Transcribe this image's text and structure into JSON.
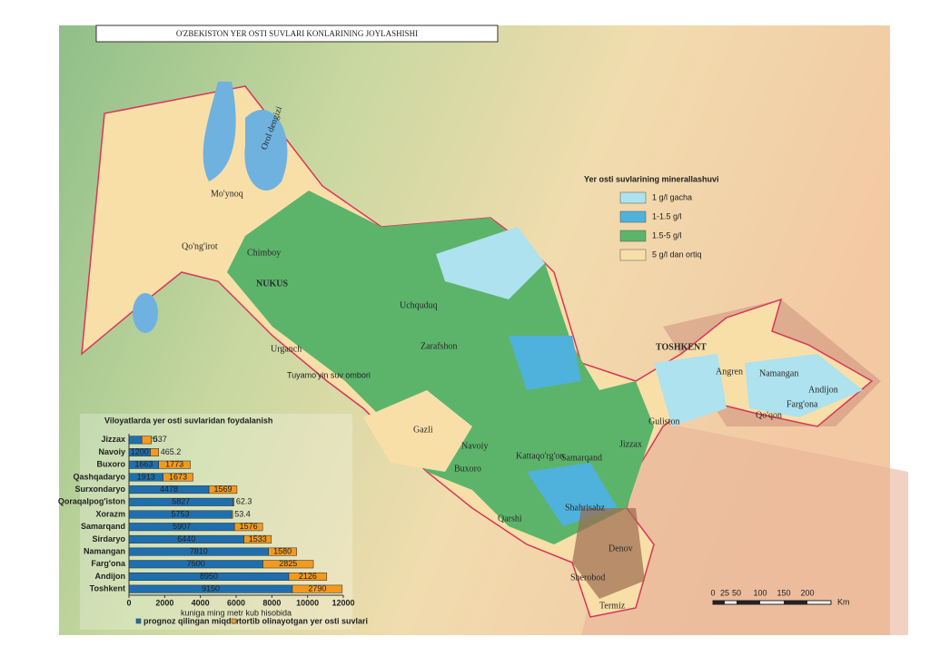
{
  "header": {
    "title": "O'ZBEKISTON YER OSTI SUVLARI KONLARINING JOYLASHISHI"
  },
  "legend": {
    "title": "Yer osti suvlarining minerallashuvi",
    "items": [
      {
        "label": "1 g/l gacha",
        "color": "#ade2ee"
      },
      {
        "label": "1-1.5 g/l",
        "color": "#4fb2dc"
      },
      {
        "label": "1.5-5 g/l",
        "color": "#5cb46b"
      },
      {
        "label": "5 g/l dan ortiq",
        "color": "#f8dfa8"
      }
    ]
  },
  "places": [
    "Orol dengizi",
    "Mo'ynoq",
    "Qo'ng'irot",
    "Chimboy",
    "NUKUS",
    "Urganch",
    "Tuyamo'yin suv ombori",
    "Uchquduq",
    "Zarafshon",
    "Gazli",
    "Navoiy",
    "Buxoro",
    "Kattaqo'rg'on",
    "Samarqand",
    "Jizzax",
    "Guliston",
    "TOSHKENT",
    "Angren",
    "Namangan",
    "Andijon",
    "Farg'ona",
    "Qo'qon",
    "Qarshi",
    "Shahrisabz",
    "Denov",
    "Sherobod",
    "Termiz"
  ],
  "scale_bar": {
    "labels": [
      "0",
      "25",
      "50",
      "100",
      "150",
      "200"
    ],
    "unit": "Km"
  },
  "chart_data": {
    "type": "bar",
    "orientation": "horizontal",
    "stacked": true,
    "title": "Viloyatlarda yer osti suvlaridan foydalanish",
    "x_label": "kuniga ming metr kub hisobida",
    "categories": [
      "Jizzax",
      "Navoiy",
      "Buxoro",
      "Qashqadaryo",
      "Surxondaryo",
      "Qoraqalpog'iston",
      "Xorazm",
      "Samarqand",
      "Sirdaryo",
      "Namangan",
      "Farg'ona",
      "Andijon",
      "Toshkent"
    ],
    "series": [
      {
        "name": "prognoz qilingan miqdor",
        "color": "#1f6fae",
        "values": [
          720,
          1200,
          1663,
          1913,
          4478,
          5827,
          5753,
          5907,
          6440,
          7810,
          7500,
          8950,
          9150
        ]
      },
      {
        "name": "tortib olinayotgan yer osti suvlari",
        "color": "#f39a1e",
        "values": [
          537,
          465.2,
          1773,
          1673,
          1569,
          62.3,
          53.4,
          1576,
          1533,
          1580,
          2825,
          2126,
          2790
        ]
      }
    ],
    "xlim": [
      0,
      12000
    ],
    "xticks": [
      0,
      2000,
      4000,
      6000,
      8000,
      10000,
      12000
    ]
  }
}
